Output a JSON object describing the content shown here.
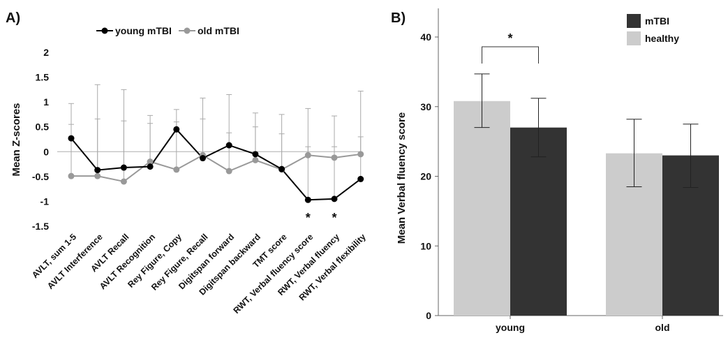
{
  "panel_a": {
    "label": "A)",
    "chart_data": {
      "type": "line",
      "title": "",
      "xlabel": "",
      "ylabel": "Mean Z-scores",
      "ylim": [
        -1.5,
        2
      ],
      "yticks": [
        "2",
        "1.5",
        "1",
        "0.5",
        "0",
        "-0.5",
        "-1",
        "-1.5"
      ],
      "categories": [
        "AVLT, sum 1-5",
        "AVLT Interference",
        "AVLT Recall",
        "AVLT Recognition",
        "Rey Figure, Copy",
        "Rey Figure, Recall",
        "Digitspan forward",
        "Digitspan backward",
        "TMT score",
        "RWT, Verbal fluency score",
        "RWT, Verbal fluency",
        "RWT, Verbal flexibility"
      ],
      "legend_position": "top",
      "reference_line": 0,
      "series": [
        {
          "name": "young mTBI",
          "color": "#000000",
          "values": [
            0.27,
            -0.37,
            -0.32,
            -0.3,
            0.45,
            -0.13,
            0.13,
            -0.05,
            -0.35,
            -0.97,
            -0.95,
            -0.55
          ],
          "err_upper": [
            0.97,
            1.35,
            1.25,
            0.73,
            0.85,
            1.08,
            1.15,
            0.78,
            0.75,
            0.87,
            0.72,
            1.22
          ]
        },
        {
          "name": "old mTBI",
          "color": "#999999",
          "values": [
            -0.49,
            -0.49,
            -0.6,
            -0.2,
            -0.36,
            -0.07,
            -0.39,
            -0.17,
            -0.36,
            -0.07,
            -0.12,
            -0.05
          ],
          "err_upper": [
            0.55,
            0.66,
            0.62,
            0.57,
            0.6,
            0.66,
            0.38,
            0.5,
            0.36,
            0.1,
            0.1,
            0.3
          ]
        }
      ],
      "significance_markers": [
        {
          "index": 9,
          "text": "*"
        },
        {
          "index": 10,
          "text": "*"
        }
      ]
    }
  },
  "panel_b": {
    "label": "B)",
    "chart_data": {
      "type": "bar",
      "title": "",
      "xlabel": "",
      "ylabel": "Mean Verbal fluency score",
      "ylim": [
        0,
        45
      ],
      "yticks": [
        0,
        10,
        20,
        30,
        40
      ],
      "categories": [
        "young",
        "old"
      ],
      "legend_position": "top-right",
      "series": [
        {
          "name": "healthy",
          "color": "#cccccc",
          "values": [
            30.8,
            23.3
          ],
          "err_low": [
            27.0,
            18.5
          ],
          "err_high": [
            34.7,
            28.2
          ]
        },
        {
          "name": "mTBI",
          "color": "#333333",
          "values": [
            27.0,
            23.0
          ],
          "err_low": [
            22.8,
            18.4
          ],
          "err_high": [
            31.2,
            27.5
          ]
        }
      ],
      "legend_order": [
        "mTBI",
        "healthy"
      ],
      "significance": {
        "category": "young",
        "text": "*"
      }
    }
  }
}
